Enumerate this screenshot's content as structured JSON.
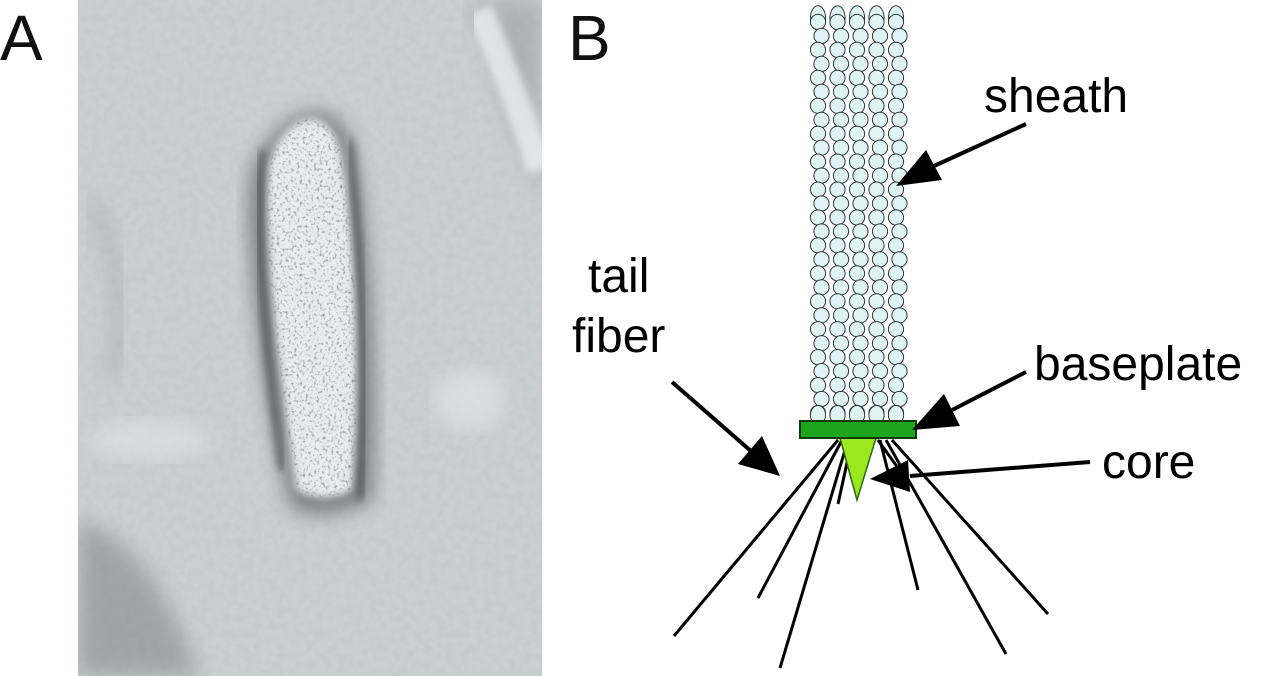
{
  "figure": {
    "panels": [
      {
        "letter": "A"
      },
      {
        "letter": "B"
      }
    ],
    "labels": {
      "sheath": "sheath",
      "tail_fiber_line1": "tail",
      "tail_fiber_line2": "fiber",
      "baseplate": "baseplate",
      "core": "core"
    },
    "micrograph": {
      "content": "electron micrograph of a contractile tail-like particle"
    },
    "colors": {
      "sheath_fill": "#dff3f5",
      "sheath_stroke": "#2a3a3c",
      "baseplate": "#1ea51e",
      "core": "#9be81f",
      "lines": "#000000"
    },
    "sheath_grid": {
      "columns": 5,
      "rows": 29
    },
    "tail_fiber_count": 8
  }
}
